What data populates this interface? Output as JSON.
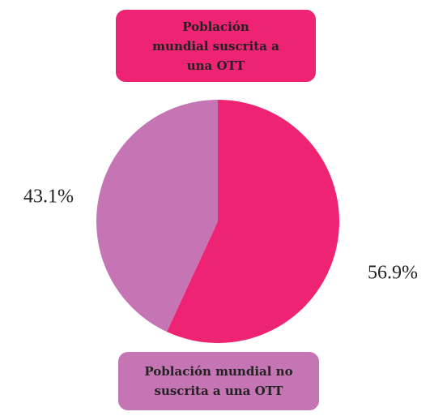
{
  "chart_data": {
    "type": "pie",
    "categories": [
      "Población mundial suscrita a una OTT",
      "Población mundial no suscrita a una OTT"
    ],
    "values": [
      56.9,
      43.1
    ],
    "value_labels": [
      "56.9%",
      "43.1%"
    ],
    "colors": [
      "#ee2373",
      "#c675b4"
    ]
  }
}
